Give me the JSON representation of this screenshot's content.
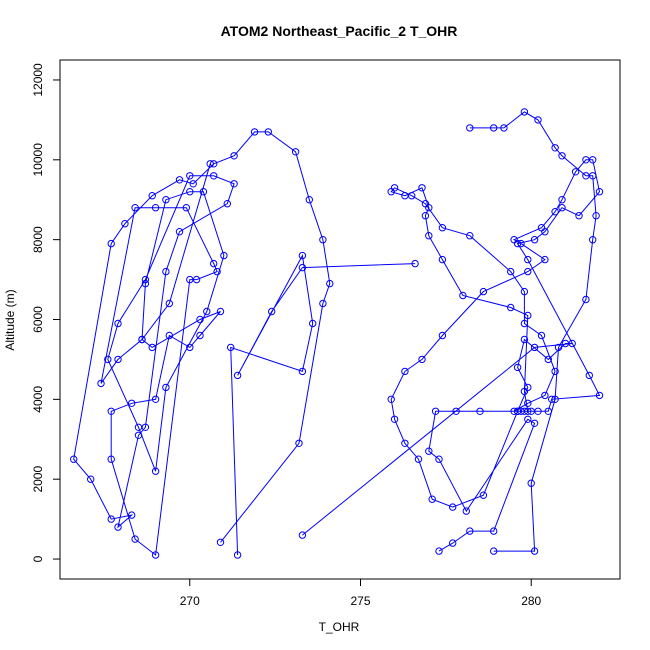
{
  "chart_data": {
    "type": "line",
    "title": "ATOM2 Northeast_Pacific_2 T_OHR",
    "xlabel": "T_OHR",
    "ylabel": "Altitude (m)",
    "xlim": [
      266.2,
      282.6
    ],
    "ylim": [
      -500,
      12500
    ],
    "xticks": [
      270,
      275,
      280
    ],
    "yticks": [
      0,
      2000,
      4000,
      6000,
      8000,
      10000,
      12000
    ],
    "grid": false,
    "color": "#0000ff",
    "series": [
      {
        "x": [
          270.9,
          273.2,
          273.9,
          274.1,
          273.9,
          273.5,
          273.1,
          272.3,
          271.9,
          271.3,
          270.7,
          270.1,
          269.7,
          268.9,
          268.1,
          267.7,
          266.6,
          267.1,
          267.7,
          268.3,
          267.9,
          268.5,
          268.7,
          269.3,
          269.7,
          271.1,
          271.3,
          270.7,
          270.0,
          268.7,
          267.9,
          267.6,
          268.5,
          269.0,
          269.3,
          270.5,
          271.0,
          270.4,
          270.0,
          269.3,
          268.7,
          268.6,
          268.9,
          270.3,
          270.9,
          270.3,
          270.0,
          269.4,
          269.0,
          268.3,
          267.7,
          267.7,
          268.4,
          269.0,
          270.0,
          270.2,
          270.8,
          270.7,
          269.9,
          269.0,
          268.4,
          267.4,
          267.9,
          268.6,
          269.4,
          270.6
        ],
        "y": [
          420,
          2900,
          6400,
          6900,
          8000,
          9000,
          10200,
          10700,
          10700,
          10100,
          9900,
          9400,
          9500,
          9100,
          8400,
          7900,
          2500,
          2000,
          1000,
          1100,
          800,
          3100,
          3300,
          7200,
          8200,
          8900,
          9400,
          9600,
          9600,
          7000,
          5900,
          5000,
          3300,
          2200,
          4300,
          6200,
          7600,
          9200,
          9200,
          9000,
          6900,
          5500,
          5300,
          6000,
          6200,
          5600,
          5300,
          5600,
          4000,
          3900,
          3700,
          2500,
          500,
          100,
          7000,
          7000,
          7200,
          7400,
          8800,
          8800,
          8800,
          4400,
          5000,
          5500,
          6400,
          9900
        ]
      },
      {
        "x": [
          271.4,
          271.2,
          273.3,
          273.6,
          273.3,
          271.4,
          272.4,
          273.3,
          276.6
        ],
        "y": [
          100,
          5300,
          4700,
          5900,
          7600,
          4600,
          6200,
          7300,
          7400
        ]
      },
      {
        "x": [
          273.3,
          280.1,
          281.2,
          281.0,
          280.5,
          279.8,
          279.6,
          279.9,
          279.6,
          278.6,
          277.7,
          277.1,
          276.7,
          276.3,
          276.0,
          275.9,
          276.3,
          276.8,
          277.4,
          278.6,
          279.9,
          280.4,
          279.7,
          279.5,
          280.3,
          280.7,
          280.9,
          281.3,
          281.6,
          281.8,
          282.0,
          281.4,
          280.9,
          280.4,
          280.1,
          279.6,
          279.9,
          281.7,
          282.0,
          280.6,
          280.5,
          280.0,
          279.8,
          279.7,
          279.5,
          279.9,
          280.4,
          280.7,
          280.3,
          279.8,
          279.8,
          279.4,
          278.2,
          277.4,
          276.9,
          276.5,
          276.0,
          275.9,
          276.3,
          276.8,
          277.0,
          276.9,
          277.0,
          277.4,
          278.0,
          279.4,
          279.9,
          279.8,
          279.9,
          280.2,
          279.6,
          278.5,
          277.8,
          277.2,
          277.0,
          277.3,
          278.1,
          279.9,
          280.1,
          278.9,
          278.2,
          277.7,
          277.3
        ],
        "y": [
          600,
          5300,
          5400,
          5400,
          5000,
          5500,
          4800,
          4300,
          3700,
          1600,
          1300,
          1500,
          2500,
          2900,
          3500,
          4000,
          4700,
          5000,
          5600,
          6700,
          7200,
          7500,
          7900,
          8000,
          8300,
          8700,
          9000,
          9700,
          10000,
          10000,
          9200,
          8600,
          8800,
          8200,
          8000,
          7900,
          7500,
          4600,
          4100,
          4000,
          3700,
          3700,
          3700,
          3700,
          3700,
          3900,
          4100,
          4700,
          5600,
          5900,
          6700,
          7200,
          8100,
          8300,
          8900,
          9100,
          9300,
          9200,
          9100,
          9300,
          8800,
          8600,
          8100,
          7500,
          6600,
          6300,
          6100,
          4200,
          3700,
          3700,
          3700,
          3700,
          3700,
          3700,
          2700,
          2500,
          1200,
          3500,
          3400,
          700,
          700,
          400,
          200
        ]
      },
      {
        "x": [
          278.9,
          280.1,
          280.0,
          280.7,
          280.8,
          281.6,
          281.8,
          281.9,
          281.8,
          281.6,
          280.9,
          280.7,
          280.2,
          279.8,
          279.2,
          278.9,
          278.2
        ],
        "y": [
          200,
          200,
          1900,
          4000,
          5300,
          6500,
          8000,
          8600,
          9600,
          9600,
          10100,
          10300,
          11000,
          11200,
          10800,
          10800,
          10800
        ]
      }
    ]
  }
}
